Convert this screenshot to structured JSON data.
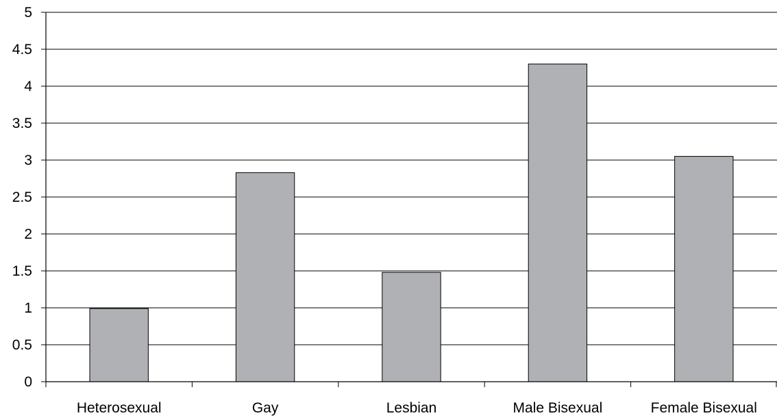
{
  "chart_data": {
    "type": "bar",
    "title": "",
    "xlabel": "",
    "ylabel": "",
    "categories": [
      "Heterosexual",
      "Gay",
      "Lesbian",
      "Male Bisexual",
      "Female Bisexual"
    ],
    "values": [
      0.99,
      2.83,
      1.48,
      4.3,
      3.05
    ],
    "ylim": [
      0,
      5
    ],
    "yticks": [
      "0",
      "0.5",
      "1",
      "1.5",
      "2",
      "2.5",
      "3",
      "3.5",
      "4",
      "4.5",
      "5"
    ],
    "grid": true,
    "legend": "none",
    "colors": {
      "bar_fill": "#b0b1b5",
      "bar_stroke": "#000000",
      "grid": "#000000",
      "text": "#000000"
    }
  }
}
